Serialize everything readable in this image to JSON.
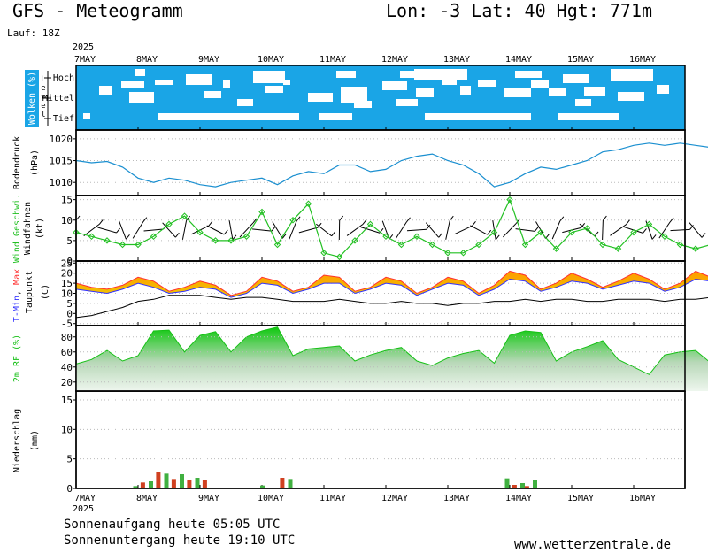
{
  "header": {
    "title": "GFS - Meteogramm",
    "coords": "Lon: -3 Lat: 40 Hgt: 771m",
    "run": "Lauf: 18Z",
    "year_top": "2025",
    "year_bottom": "2025"
  },
  "footer": {
    "sunrise": "Sonnenaufgang heute 05:05 UTC",
    "sunset": "Sonnenuntergang heute 19:10 UTC",
    "site": "www.wetterzentrale.de"
  },
  "colors": {
    "cloud_blue": "#1aa5e6",
    "pressure_line": "#1a8fd0",
    "wind_green": "#22c022",
    "tmax_red": "#ff3030",
    "temp_orange": "#ff9a00",
    "temp_yellow": "#f0c800",
    "tmin_blue": "#3030ff",
    "rh_green": "#16c016",
    "precip_green": "#40b040",
    "precip_red": "#d04020"
  },
  "chart_data": [
    {
      "type": "heatmap",
      "title": "Wolken (%)",
      "ylabel": "Level",
      "levels": [
        "Hoch",
        "Mittel",
        "Tief"
      ],
      "days": [
        "7MAY",
        "8MAY",
        "9MAY",
        "10MAY",
        "11MAY",
        "12MAY",
        "13MAY",
        "14MAY",
        "15MAY",
        "16MAY"
      ]
    },
    {
      "type": "line",
      "ylabel": "Bodendruck (hPa)",
      "ylim": [
        1007,
        1022
      ],
      "yticks": [
        1010,
        1015,
        1020
      ],
      "x_days": [
        0,
        0.25,
        0.5,
        0.75,
        1,
        1.25,
        1.5,
        1.75,
        2,
        2.25,
        2.5,
        2.75,
        3,
        3.25,
        3.5,
        3.75,
        4,
        4.25,
        4.5,
        4.75,
        5,
        5.25,
        5.5,
        5.75,
        6,
        6.25,
        6.5,
        6.75,
        7,
        7.25,
        7.5,
        7.75,
        8,
        8.25,
        8.5,
        8.75,
        9,
        9.25,
        9.5,
        9.75,
        10,
        10.25,
        10.5
      ],
      "values": [
        1015,
        1014.5,
        1014.8,
        1013.5,
        1011,
        1010,
        1011,
        1010.5,
        1009.5,
        1009,
        1010,
        1010.5,
        1011,
        1009.5,
        1011.5,
        1012.5,
        1012,
        1014,
        1014,
        1012.5,
        1013,
        1015,
        1016,
        1016.5,
        1015,
        1014,
        1012,
        1009,
        1010,
        1012,
        1013.5,
        1013,
        1014,
        1015,
        1017,
        1017.5,
        1018.5,
        1019,
        1018.5,
        1019,
        1018.5,
        1018,
        1017.5
      ]
    },
    {
      "type": "line",
      "ylabel": "Wind Geschwi. (kt)",
      "ylabel2": "Windfahnen",
      "ylim": [
        0,
        16
      ],
      "yticks": [
        0,
        5,
        10,
        15
      ],
      "series": [
        {
          "name": "Wind Geschwi.",
          "x_days": [
            0,
            0.25,
            0.5,
            0.75,
            1,
            1.25,
            1.5,
            1.75,
            2,
            2.25,
            2.5,
            2.75,
            3,
            3.25,
            3.5,
            3.75,
            4,
            4.25,
            4.5,
            4.75,
            5,
            5.25,
            5.5,
            5.75,
            6,
            6.25,
            6.5,
            6.75,
            7,
            7.25,
            7.5,
            7.75,
            8,
            8.25,
            8.5,
            8.75,
            9,
            9.25,
            9.5,
            9.75,
            10,
            10.25,
            10.5
          ],
          "values": [
            7,
            6,
            5,
            4,
            4,
            6,
            9,
            11,
            7,
            5,
            5,
            6,
            12,
            4,
            10,
            14,
            2,
            1,
            5,
            9,
            6,
            4,
            6,
            4,
            2,
            2,
            4,
            7,
            15,
            4,
            7,
            3,
            7,
            8,
            4,
            3,
            7,
            9,
            6,
            4,
            3,
            4,
            5
          ]
        }
      ],
      "annotations": [
        "wind barbs"
      ]
    },
    {
      "type": "area",
      "ylabel": "T-Min, Max (C)",
      "ylabel2": "Taupunkt",
      "ylim": [
        -6,
        26
      ],
      "yticks": [
        -5,
        0,
        5,
        10,
        15,
        20,
        25
      ],
      "x_days": [
        0,
        0.25,
        0.5,
        0.75,
        1,
        1.25,
        1.5,
        1.75,
        2,
        2.25,
        2.5,
        2.75,
        3,
        3.25,
        3.5,
        3.75,
        4,
        4.25,
        4.5,
        4.75,
        5,
        5.25,
        5.5,
        5.75,
        6,
        6.25,
        6.5,
        6.75,
        7,
        7.25,
        7.5,
        7.75,
        8,
        8.25,
        8.5,
        8.75,
        9,
        9.25,
        9.5,
        9.75,
        10,
        10.25,
        10.5
      ],
      "series": [
        {
          "name": "T-Max",
          "values": [
            15,
            13,
            12,
            14,
            18,
            16,
            11,
            13,
            16,
            14,
            9,
            11,
            18,
            16,
            11,
            13,
            19,
            18,
            11,
            13,
            18,
            16,
            10,
            13,
            18,
            16,
            10,
            14,
            21,
            19,
            12,
            15,
            20,
            17,
            13,
            16,
            20,
            17,
            12,
            15,
            21,
            18,
            12
          ]
        },
        {
          "name": "T-Min",
          "values": [
            12,
            11,
            10,
            12,
            15,
            13,
            10,
            11,
            13,
            12,
            8,
            10,
            15,
            14,
            10,
            12,
            15,
            15,
            10,
            12,
            15,
            14,
            9,
            12,
            15,
            14,
            9,
            12,
            17,
            16,
            11,
            13,
            16,
            15,
            12,
            14,
            16,
            15,
            11,
            13,
            17,
            16,
            11
          ]
        },
        {
          "name": "Taupunkt",
          "values": [
            -2,
            -1,
            1,
            3,
            6,
            7,
            9,
            9,
            9,
            8,
            7,
            8,
            8,
            7,
            6,
            6,
            6,
            7,
            6,
            5,
            5,
            6,
            5,
            5,
            4,
            5,
            5,
            6,
            6,
            7,
            6,
            7,
            7,
            6,
            6,
            7,
            7,
            7,
            6,
            7,
            7,
            8,
            8
          ]
        }
      ]
    },
    {
      "type": "area",
      "ylabel": "2m RF (%)",
      "ylim": [
        8,
        95
      ],
      "yticks": [
        20,
        40,
        60,
        80
      ],
      "x_days": [
        0,
        0.25,
        0.5,
        0.75,
        1,
        1.25,
        1.5,
        1.75,
        2,
        2.25,
        2.5,
        2.75,
        3,
        3.25,
        3.5,
        3.75,
        4,
        4.25,
        4.5,
        4.75,
        5,
        5.25,
        5.5,
        5.75,
        6,
        6.25,
        6.5,
        6.75,
        7,
        7.25,
        7.5,
        7.75,
        8,
        8.25,
        8.5,
        8.75,
        9,
        9.25,
        9.5,
        9.75,
        10,
        10.25,
        10.5
      ],
      "values": [
        44,
        50,
        62,
        48,
        55,
        88,
        89,
        60,
        82,
        87,
        60,
        80,
        88,
        93,
        55,
        64,
        66,
        68,
        48,
        56,
        62,
        66,
        48,
        42,
        52,
        58,
        62,
        45,
        82,
        88,
        86,
        48,
        60,
        67,
        75,
        50,
        40,
        30,
        56,
        60,
        62,
        45,
        45
      ]
    },
    {
      "type": "bar",
      "ylabel": "Niederschlag (mm)",
      "ylim": [
        0,
        16.5
      ],
      "yticks": [
        0,
        5,
        10,
        15
      ],
      "series": [
        {
          "name": "green",
          "x_days": [
            0.95,
            1.2,
            1.45,
            1.7,
            1.95,
            3.0,
            3.45,
            6.95,
            7.2,
            7.4
          ],
          "values": [
            0.4,
            1.2,
            2.5,
            2.4,
            1.8,
            0.5,
            1.6,
            1.7,
            0.9,
            1.4
          ]
        },
        {
          "name": "red",
          "x_days": [
            1.07,
            1.32,
            1.57,
            1.82,
            2.07,
            3.32,
            7.07,
            7.27
          ],
          "values": [
            1.0,
            2.8,
            1.6,
            1.5,
            1.4,
            1.8,
            0.6,
            0.4
          ]
        }
      ]
    }
  ]
}
